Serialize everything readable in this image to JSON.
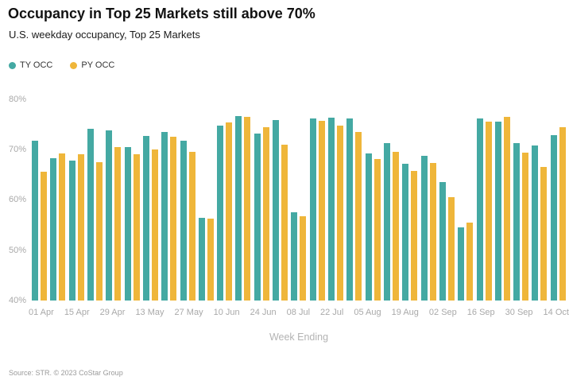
{
  "header": {
    "title": "Occupancy in Top 25 Markets still above 70%",
    "subtitle": "U.S. weekday occupancy, Top 25 Markets"
  },
  "footer": {
    "source": "Source: STR. © 2023 CoStar Group"
  },
  "chart_data": {
    "type": "bar",
    "title": "Occupancy in Top 25 Markets still above 70%",
    "subtitle": "U.S. weekday occupancy, Top 25 Markets",
    "xlabel": "Week Ending",
    "ylabel": "",
    "ylim": [
      40,
      82
    ],
    "y_ticks": [
      80,
      70,
      60,
      50,
      40
    ],
    "y_tick_suffix": "%",
    "grid": false,
    "legend_position": "top-left",
    "background_color": "#ffffff",
    "axis_label_color": "#a9a9a9",
    "categories": [
      "01 Apr",
      "08 Apr",
      "15 Apr",
      "22 Apr",
      "29 Apr",
      "06 May",
      "13 May",
      "20 May",
      "27 May",
      "03 Jun",
      "10 Jun",
      "17 Jun",
      "24 Jun",
      "01 Jul",
      "08 Jul",
      "15 Jul",
      "22 Jul",
      "29 Jul",
      "05 Aug",
      "12 Aug",
      "19 Aug",
      "26 Aug",
      "02 Sep",
      "09 Sep",
      "16 Sep",
      "23 Sep",
      "30 Sep",
      "07 Oct",
      "14 Oct"
    ],
    "x_tick_every": 2,
    "x_ticks_shown": [
      "01 Apr",
      "15 Apr",
      "29 Apr",
      "13 May",
      "27 May",
      "10 Jun",
      "24 Jun",
      "08 Jul",
      "22 Jul",
      "05 Aug",
      "19 Aug",
      "02 Sep",
      "16 Sep",
      "30 Sep",
      "14 Oct"
    ],
    "series": [
      {
        "name": "TY OCC",
        "color": "#44A9A3",
        "values": [
          71.7,
          68.3,
          67.8,
          74.1,
          73.8,
          70.5,
          72.7,
          73.4,
          71.8,
          56.5,
          74.7,
          76.7,
          73.1,
          75.8,
          57.6,
          76.2,
          76.3,
          76.2,
          69.2,
          71.3,
          67.2,
          68.7,
          63.5,
          54.6,
          76.1,
          75.6,
          71.3,
          70.8,
          72.8
        ]
      },
      {
        "name": "PY OCC",
        "color": "#EFB63A",
        "values": [
          65.6,
          69.2,
          69.0,
          67.4,
          70.4,
          69.1,
          70.0,
          72.6,
          69.6,
          56.3,
          75.3,
          76.4,
          74.4,
          71.0,
          56.8,
          75.7,
          74.7,
          73.4,
          68.1,
          69.5,
          65.7,
          67.3,
          60.5,
          55.4,
          75.5,
          76.4,
          69.3,
          66.6,
          74.5
        ]
      }
    ]
  }
}
